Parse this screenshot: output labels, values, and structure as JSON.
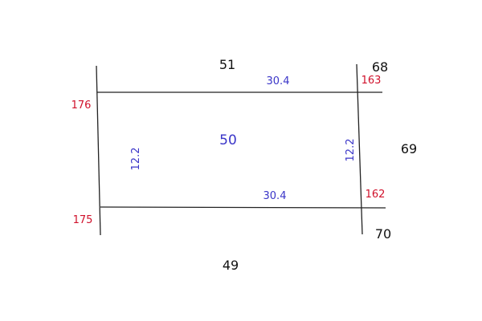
{
  "parcel_number": "50",
  "neighbor_parcels": {
    "top": "51",
    "bottom": "49",
    "top_right": "68",
    "right": "69",
    "bottom_right": "70"
  },
  "corner_points": {
    "top_left": "176",
    "bottom_left": "175",
    "top_right": "163",
    "bottom_right": "162"
  },
  "dimensions": {
    "top": "30.4",
    "bottom": "30.4",
    "left": "12.2",
    "right": "12.2"
  },
  "colors": {
    "lines": "#222222",
    "neighbor_labels": "#111111",
    "point_labels": "#d0112b",
    "dimension_labels": "#3a35c8"
  }
}
